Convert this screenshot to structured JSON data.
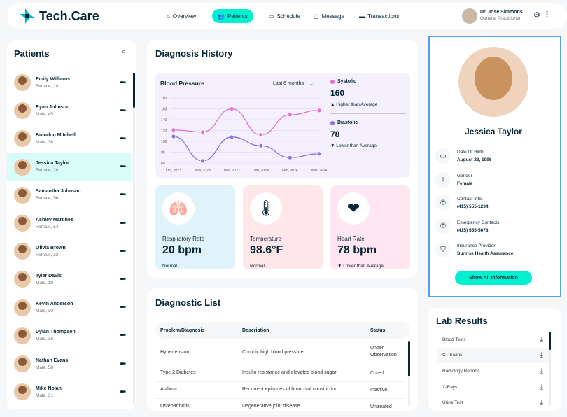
{
  "header": {
    "logo": "Tech.Care",
    "nav": [
      {
        "label": "Overview",
        "icon": "home-icon"
      },
      {
        "label": "Patients",
        "icon": "patients-icon",
        "active": true
      },
      {
        "label": "Schedule",
        "icon": "calendar-icon"
      },
      {
        "label": "Message",
        "icon": "message-icon"
      },
      {
        "label": "Transactions",
        "icon": "credit-card-icon"
      }
    ],
    "doctor_name": "Dr. Jose Simmons",
    "doctor_role": "General Practitioner"
  },
  "patients": {
    "title": "Patients",
    "items": [
      {
        "name": "Emily Williams",
        "meta": "Female, 18"
      },
      {
        "name": "Ryan Johnson",
        "meta": "Male, 45"
      },
      {
        "name": "Brandon Mitchell",
        "meta": "Male, 36"
      },
      {
        "name": "Jessica Taylor",
        "meta": "Female, 28",
        "selected": true
      },
      {
        "name": "Samantha Johnson",
        "meta": "Female, 56"
      },
      {
        "name": "Ashley Martinez",
        "meta": "Female, 54"
      },
      {
        "name": "Olivia Brown",
        "meta": "Female, 32"
      },
      {
        "name": "Tyler Davis",
        "meta": "Male, 19"
      },
      {
        "name": "Kevin Anderson",
        "meta": "Male, 30"
      },
      {
        "name": "Dylan Thompson",
        "meta": "Male, 36"
      },
      {
        "name": "Nathan Evans",
        "meta": "Male, 58"
      },
      {
        "name": "Mike Nolan",
        "meta": "Male, 31"
      }
    ]
  },
  "diagnosis": {
    "title": "Diagnosis History",
    "bp_title": "Blood Pressure",
    "range": "Last 6 months",
    "systolic": {
      "label": "Systolic",
      "value": "160",
      "note": "Higher than Average",
      "color": "#E66FD2"
    },
    "diastolic": {
      "label": "Diastolic",
      "value": "78",
      "note": "Lower than Average",
      "color": "#8C6FE6"
    },
    "vitals": [
      {
        "label": "Respiratory Rate",
        "value": "20 bpm",
        "status": "Normal",
        "bg": "#E0F3FA",
        "icon": "lungs-icon"
      },
      {
        "label": "Temperature",
        "value": "98.6°F",
        "status": "Normal",
        "bg": "#FFE6E9",
        "icon": "thermometer-icon"
      },
      {
        "label": "Heart Rate",
        "value": "78 bpm",
        "status": "Lower than Average",
        "bg": "#FFE6F1",
        "icon": "heart-icon"
      }
    ]
  },
  "chart_data": {
    "type": "line",
    "categories": [
      "Oct, 2023",
      "Nov, 2023",
      "Dec, 2023",
      "Jan, 2024",
      "Feb, 2024",
      "Mar, 2024"
    ],
    "ylim": [
      60,
      180
    ],
    "yticks": [
      "180",
      "160",
      "140",
      "120",
      "100",
      "80",
      "60"
    ],
    "grid": true,
    "series": [
      {
        "name": "Systolic",
        "values": [
          121,
          117,
          160,
          112,
          149,
          157
        ],
        "color": "#E66FD2"
      },
      {
        "name": "Diastolic",
        "values": [
          109,
          64,
          108,
          92,
          70,
          77
        ],
        "color": "#8C6FE6"
      }
    ]
  },
  "diagnostic_list": {
    "title": "Diagnostic List",
    "headers": [
      "Problem/Diagnosis",
      "Description",
      "Status"
    ],
    "rows": [
      [
        "Hypertension",
        "Chronic high blood pressure",
        "Under Observation"
      ],
      [
        "Type 2 Diabetes",
        "Insulin resistance and elevated blood sugar",
        "Cured"
      ],
      [
        "Asthma",
        "Recurrent episodes of bronchial constriction",
        "Inactive"
      ],
      [
        "Osteoarthritis",
        "Degenerative joint disease",
        "Untreated"
      ]
    ]
  },
  "profile": {
    "name": "Jessica Taylor",
    "fields": [
      {
        "label": "Date Of Birth",
        "value": "August 23, 1996",
        "icon": "calendar-icon"
      },
      {
        "label": "Gender",
        "value": "Female",
        "icon": "female-icon"
      },
      {
        "label": "Contact Info.",
        "value": "(415) 555-1234",
        "icon": "phone-icon"
      },
      {
        "label": "Emergency Contacts",
        "value": "(415) 555-5678",
        "icon": "phone-icon"
      },
      {
        "label": "Insurance Provider",
        "value": "Sunrise Health Assurance",
        "icon": "shield-icon"
      }
    ],
    "button": "Show All Information"
  },
  "lab_results": {
    "title": "Lab Results",
    "items": [
      "Blood Tests",
      "CT Scans",
      "Radiology Reports",
      "X-Rays",
      "Urine Test"
    ]
  }
}
